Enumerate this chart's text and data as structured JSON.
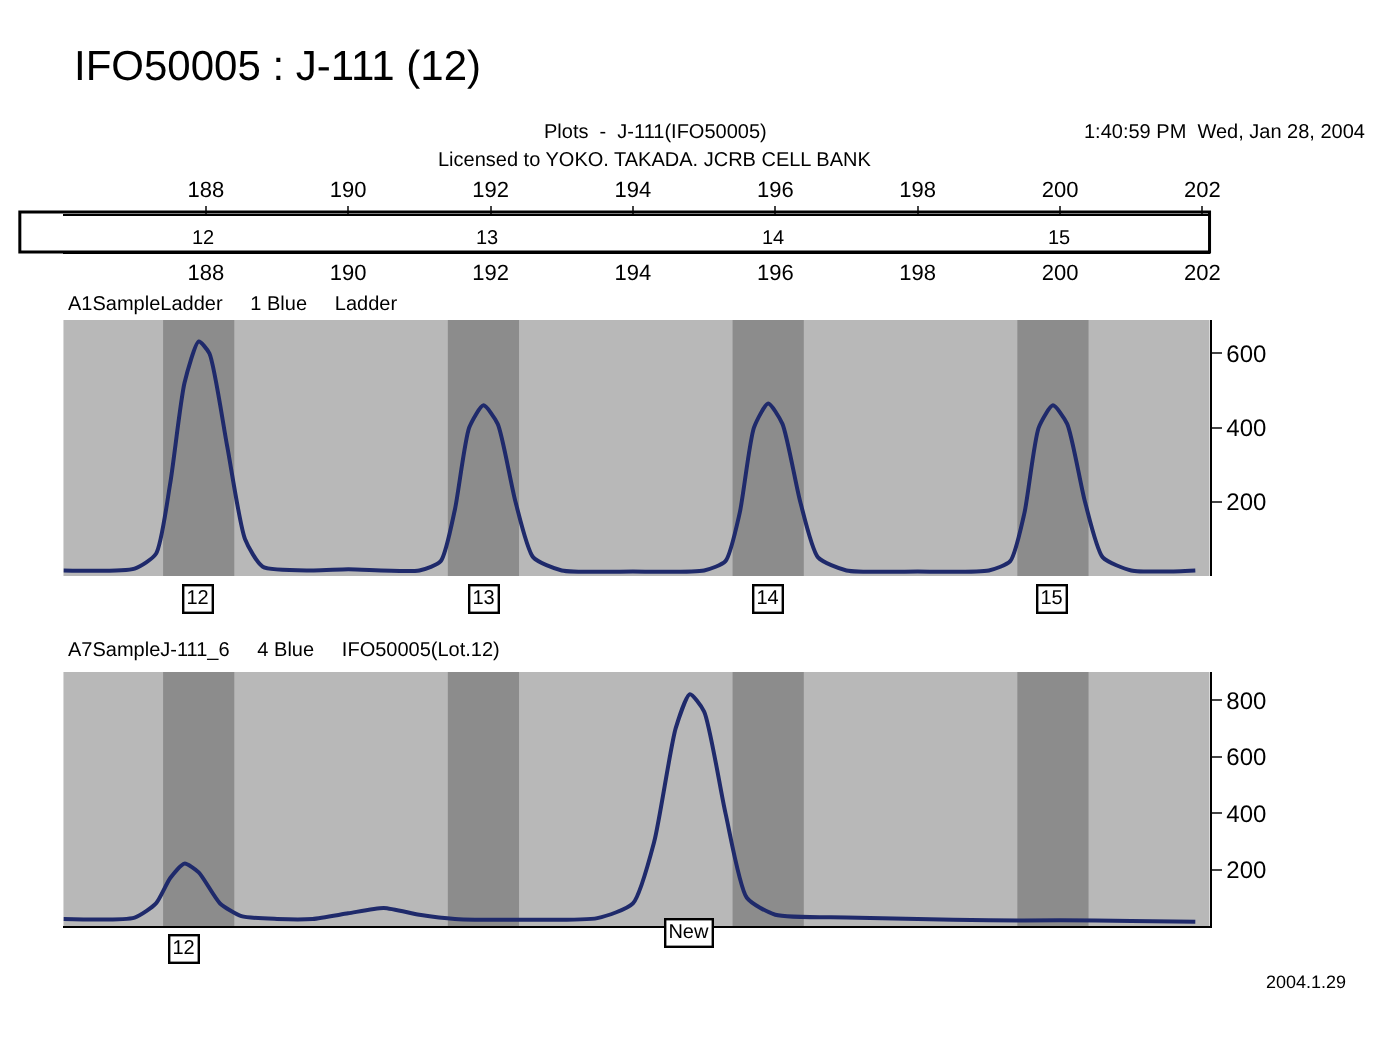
{
  "chart_data": [
    {
      "type": "line",
      "title": "IFO50005 : J-111 (12)",
      "subtitle": "A1SampleLadder     1 Blue     Ladder",
      "annotations": [
        "Plots  -  J-111(IFO50005)",
        "Licensed to YOKO. TAKADA. JCRB CELL BANK",
        "1:40:59 PM  Wed, Jan 28, 2004",
        "12",
        "13",
        "14",
        "15",
        {
          "text": "12",
          "x": 187.9,
          "y": 0
        },
        {
          "text": "13",
          "x": 191.9,
          "y": 0
        },
        {
          "text": "14",
          "x": 195.9,
          "y": 0
        },
        {
          "text": "15",
          "x": 199.9,
          "y": 0
        }
      ],
      "series": [
        {
          "color": "#1f2a6b",
          "x": [
            186.0,
            187.0,
            187.3,
            187.5,
            187.7,
            187.9,
            188.05,
            188.3,
            188.55,
            188.8,
            189.5,
            190.0,
            191.0,
            191.3,
            191.5,
            191.7,
            191.9,
            192.1,
            192.35,
            192.6,
            193.0,
            194.0,
            195.0,
            195.3,
            195.5,
            195.7,
            195.9,
            196.1,
            196.35,
            196.6,
            197.0,
            198.0,
            199.0,
            199.3,
            199.5,
            199.7,
            199.9,
            200.1,
            200.35,
            200.6,
            201.0,
            201.5,
            201.9
          ],
          "values": [
            15,
            20,
            60,
            250,
            520,
            632,
            600,
            350,
            100,
            25,
            15,
            18,
            15,
            40,
            180,
            400,
            460,
            410,
            200,
            50,
            15,
            12,
            15,
            40,
            170,
            400,
            465,
            410,
            200,
            50,
            15,
            12,
            15,
            40,
            170,
            400,
            460,
            410,
            200,
            50,
            15,
            12,
            15
          ]
        }
      ],
      "bands": [
        {
          "axis": "x",
          "from": 187.4,
          "to": 188.4,
          "color": "#8c8c8c"
        },
        {
          "axis": "x",
          "from": 191.4,
          "to": 192.4,
          "color": "#8c8c8c"
        },
        {
          "axis": "x",
          "from": 195.4,
          "to": 196.4,
          "color": "#8c8c8c"
        },
        {
          "axis": "x",
          "from": 199.4,
          "to": 200.4,
          "color": "#8c8c8c"
        }
      ],
      "xlim": [
        186,
        202.1
      ],
      "xticks": [
        188,
        190,
        192,
        194,
        196,
        198,
        200,
        202
      ],
      "x2lim": [
        186,
        202.1
      ],
      "x2ticks": [
        188,
        190,
        192,
        194,
        196,
        198,
        200,
        202
      ],
      "ylim": [
        0,
        690
      ],
      "yticks": [
        200,
        400,
        600
      ],
      "grid": false
    },
    {
      "type": "line",
      "subtitle": "A7SampleJ-111_6     4 Blue     IFO50005(Lot.12)",
      "annotations": [
        {
          "text": "12",
          "x": 187.7,
          "y": 0
        },
        "New",
        "2004.1.29"
      ],
      "series": [
        {
          "color": "#1f2a6b",
          "x": [
            186.0,
            187.0,
            187.3,
            187.5,
            187.7,
            187.9,
            188.2,
            188.5,
            189.0,
            189.5,
            190.0,
            190.5,
            191.0,
            191.5,
            192.5,
            193.5,
            194.0,
            194.3,
            194.6,
            194.8,
            195.0,
            195.3,
            195.6,
            196.0,
            197.0,
            198.0,
            199.0,
            200.0,
            201.0,
            201.9
          ],
          "values": [
            25,
            30,
            80,
            170,
            221,
            190,
            80,
            35,
            25,
            25,
            45,
            64,
            40,
            25,
            22,
            28,
            80,
            300,
            700,
            821,
            760,
            400,
            100,
            40,
            30,
            25,
            20,
            20,
            18,
            15
          ]
        }
      ],
      "bands": [
        {
          "axis": "x",
          "from": 187.4,
          "to": 188.4,
          "color": "#8c8c8c"
        },
        {
          "axis": "x",
          "from": 191.4,
          "to": 192.4,
          "color": "#8c8c8c"
        },
        {
          "axis": "x",
          "from": 195.4,
          "to": 196.4,
          "color": "#8c8c8c"
        },
        {
          "axis": "x",
          "from": 199.4,
          "to": 200.4,
          "color": "#8c8c8c"
        }
      ],
      "xlim": [
        186,
        202.1
      ],
      "ylim": [
        0,
        900
      ],
      "yticks": [
        200,
        400,
        600,
        800
      ],
      "tick_labels": "y",
      "grid": false
    }
  ]
}
